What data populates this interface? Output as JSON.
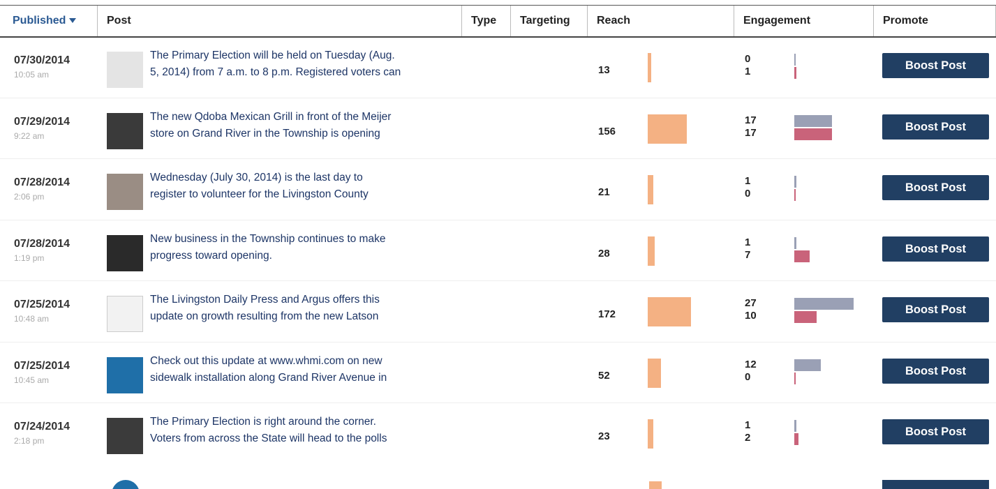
{
  "header": {
    "columns": [
      "Published",
      "Post",
      "Type",
      "Targeting",
      "Reach",
      "Engagement",
      "Promote"
    ]
  },
  "rows": [
    {
      "date": "07/30/2014",
      "time": "10:05 am",
      "text": [
        "The Primary Election will be held on Tuesday (Aug.",
        "5, 2014) from 7 a.m. to 8 p.m. Registered voters can"
      ],
      "reach": 13,
      "engagement": [
        0,
        1
      ],
      "promote": "Boost Post"
    },
    {
      "date": "07/29/2014",
      "time": "9:22 am",
      "text": [
        "The new Qdoba Mexican Grill in front of the Meijer",
        "store on Grand River in the Township is opening"
      ],
      "reach": 156,
      "engagement": [
        17,
        17
      ],
      "promote": "Boost Post"
    },
    {
      "date": "07/28/2014",
      "time": "2:06 pm",
      "text": [
        "Wednesday (July 30, 2014) is the last day to",
        "register to volunteer for the Livingston County"
      ],
      "reach": 21,
      "engagement": [
        1,
        0
      ],
      "promote": "Boost Post"
    },
    {
      "date": "07/28/2014",
      "time": "1:19 pm",
      "text": [
        "New business in the Township continues to make",
        "progress toward opening."
      ],
      "reach": 28,
      "engagement": [
        1,
        7
      ],
      "promote": "Boost Post"
    },
    {
      "date": "07/25/2014",
      "time": "10:48 am",
      "text": [
        "The Livingston Daily Press and Argus offers this",
        "update on growth resulting from the new Latson"
      ],
      "reach": 172,
      "engagement": [
        27,
        10
      ],
      "promote": "Boost Post"
    },
    {
      "date": "07/25/2014",
      "time": "10:45 am",
      "text": [
        "Check out this update at www.whmi.com on new",
        "sidewalk installation along Grand River Avenue in"
      ],
      "reach": 52,
      "engagement": [
        12,
        0
      ],
      "promote": "Boost Post"
    },
    {
      "date": "07/24/2014",
      "time": "2:18 pm",
      "text": [
        "The Primary Election is right around the corner.",
        "Voters from across the State will head to the polls"
      ],
      "reach": 23,
      "engagement": [
        1,
        2
      ],
      "promote": "Boost Post"
    }
  ]
}
